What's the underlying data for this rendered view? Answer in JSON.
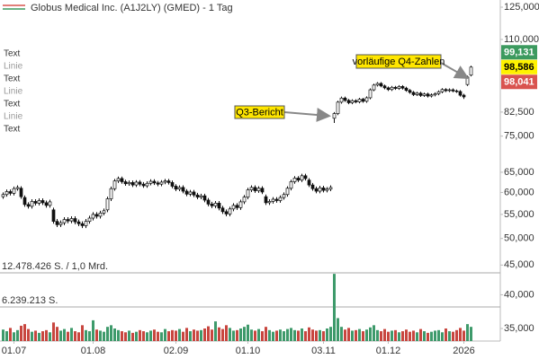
{
  "chart_data": {
    "type": "candlestick",
    "title": "Globus Medical Inc. (A1J2LY) (GMED) - 1 Tag",
    "categories": [
      null,
      null,
      null,
      "01.07",
      null,
      null,
      null,
      null,
      null,
      null,
      null,
      null,
      null,
      null,
      null,
      null,
      null,
      null,
      null,
      null,
      null,
      null,
      null,
      null,
      null,
      "01.08",
      null,
      null,
      null,
      null,
      null,
      null,
      null,
      null,
      null,
      null,
      null,
      null,
      null,
      null,
      null,
      null,
      null,
      null,
      null,
      null,
      null,
      null,
      "02.09",
      null,
      null,
      null,
      null,
      null,
      null,
      null,
      null,
      null,
      null,
      null,
      null,
      null,
      null,
      null,
      null,
      null,
      null,
      null,
      "01.10",
      null,
      null,
      null,
      null,
      null,
      null,
      null,
      null,
      null,
      null,
      null,
      null,
      null,
      null,
      null,
      null,
      null,
      null,
      null,
      null,
      "03.11",
      null,
      null,
      null,
      null,
      null,
      null,
      null,
      null,
      null,
      null,
      null,
      null,
      null,
      null,
      null,
      null,
      null,
      "01.12",
      null,
      null,
      null,
      null,
      null,
      null,
      null,
      null,
      null,
      null,
      null,
      null,
      null,
      null,
      null,
      null,
      null,
      null,
      null,
      null,
      "2026",
      null,
      null
    ],
    "open": [
      59.0,
      59.5,
      60.2,
      59.8,
      60.9,
      61.0,
      58.8,
      57.2,
      56.8,
      57.9,
      57.5,
      58.1,
      57.6,
      57.0,
      56.0,
      53.5,
      52.8,
      53.2,
      53.9,
      53.6,
      54.1,
      53.4,
      53.0,
      52.6,
      53.5,
      54.2,
      55.0,
      54.6,
      55.3,
      56.0,
      58.5,
      60.9,
      62.8,
      63.4,
      62.6,
      62.1,
      62.4,
      61.8,
      62.5,
      62.0,
      61.6,
      62.2,
      62.7,
      62.3,
      62.0,
      62.5,
      62.8,
      62.4,
      61.5,
      60.8,
      61.2,
      60.3,
      59.6,
      60.1,
      59.4,
      58.9,
      59.2,
      58.2,
      57.3,
      56.9,
      57.5,
      56.4,
      55.6,
      55.1,
      56.2,
      57.0,
      56.5,
      57.8,
      58.9,
      60.6,
      61.2,
      60.4,
      61.0,
      59.0,
      57.6,
      57.9,
      58.4,
      58.1,
      58.8,
      59.5,
      61.0,
      62.6,
      63.5,
      63.0,
      64.1,
      63.0,
      61.8,
      60.9,
      60.3,
      61.1,
      60.5,
      60.8,
      80.5,
      82.0,
      85.8,
      87.2,
      86.4,
      85.6,
      86.3,
      85.9,
      86.8,
      86.1,
      87.3,
      90.1,
      91.8,
      92.4,
      91.5,
      90.8,
      90.2,
      91.0,
      90.6,
      91.3,
      90.7,
      89.9,
      89.2,
      88.4,
      88.9,
      88.1,
      88.6,
      87.9,
      88.3,
      88.7,
      89.4,
      90.2,
      89.8,
      90.1,
      89.7,
      89.5,
      88.2,
      92.0,
      95.5
    ],
    "high": [
      60.0,
      60.7,
      60.7,
      61.4,
      61.7,
      61.5,
      59.3,
      57.7,
      58.4,
      58.4,
      58.6,
      58.6,
      58.1,
      58.3,
      56.5,
      54.0,
      53.7,
      54.4,
      54.4,
      54.6,
      54.6,
      53.9,
      53.5,
      54.0,
      54.7,
      55.5,
      55.5,
      55.8,
      56.3,
      59.0,
      61.4,
      63.3,
      63.9,
      63.9,
      63.1,
      62.9,
      62.9,
      63.0,
      63.0,
      62.5,
      62.7,
      63.2,
      63.2,
      62.8,
      63.0,
      63.3,
      63.3,
      62.9,
      62.0,
      61.7,
      61.7,
      60.8,
      60.6,
      60.6,
      59.9,
      59.7,
      59.7,
      58.7,
      57.8,
      58.0,
      58.0,
      56.9,
      56.1,
      56.7,
      57.5,
      57.5,
      58.3,
      59.4,
      61.1,
      61.7,
      61.7,
      61.5,
      61.5,
      59.5,
      58.4,
      58.9,
      58.9,
      59.3,
      60.0,
      61.5,
      63.1,
      64.0,
      64.0,
      64.6,
      64.6,
      63.5,
      62.3,
      61.4,
      61.6,
      61.6,
      61.3,
      61.7,
      82.5,
      86.3,
      87.7,
      87.7,
      86.9,
      86.8,
      86.8,
      87.3,
      87.3,
      87.8,
      90.6,
      92.3,
      92.9,
      92.9,
      92.0,
      91.3,
      91.5,
      91.5,
      91.8,
      91.8,
      91.2,
      90.4,
      89.7,
      89.4,
      89.4,
      89.1,
      89.1,
      88.8,
      89.2,
      89.9,
      90.7,
      90.7,
      90.6,
      90.6,
      90.2,
      90.0,
      88.7,
      95.3,
      99.131
    ],
    "low": [
      58.5,
      59.0,
      59.3,
      59.3,
      60.4,
      58.5,
      56.7,
      56.3,
      56.3,
      57.0,
      57.0,
      57.1,
      56.5,
      56.5,
      53.0,
      52.3,
      52.3,
      52.7,
      53.1,
      53.1,
      52.9,
      52.5,
      52.1,
      52.1,
      53.0,
      53.7,
      54.1,
      54.1,
      54.8,
      55.5,
      58.0,
      60.4,
      62.3,
      62.1,
      61.6,
      61.6,
      61.3,
      61.3,
      61.5,
      61.1,
      61.1,
      61.7,
      61.8,
      61.5,
      61.5,
      62.0,
      61.9,
      61.0,
      60.3,
      60.3,
      59.8,
      59.1,
      59.1,
      58.9,
      58.4,
      58.4,
      57.7,
      56.8,
      56.4,
      56.4,
      55.9,
      55.1,
      54.6,
      54.6,
      55.7,
      56.0,
      56.0,
      57.3,
      58.4,
      60.1,
      59.9,
      59.9,
      59.6,
      57.1,
      57.1,
      57.4,
      57.6,
      57.6,
      58.3,
      59.0,
      60.5,
      62.1,
      62.5,
      62.5,
      62.9,
      61.3,
      60.4,
      59.8,
      59.8,
      60.0,
      60.0,
      60.3,
      79.0,
      81.5,
      85.3,
      85.9,
      85.1,
      85.1,
      85.4,
      85.4,
      85.6,
      85.6,
      86.8,
      89.6,
      91.3,
      91.0,
      90.3,
      89.7,
      89.7,
      90.1,
      90.1,
      90.2,
      89.4,
      88.7,
      87.9,
      87.9,
      87.6,
      87.6,
      87.4,
      87.4,
      87.8,
      88.2,
      88.9,
      89.3,
      89.3,
      89.2,
      89.0,
      87.7,
      86.9,
      91.5,
      95.0
    ],
    "close": [
      59.5,
      60.2,
      59.8,
      60.9,
      61.2,
      59.0,
      57.2,
      56.8,
      57.9,
      57.5,
      58.1,
      57.6,
      57.0,
      57.8,
      53.5,
      52.8,
      53.2,
      53.9,
      53.6,
      54.1,
      53.4,
      53.0,
      52.6,
      53.5,
      54.2,
      55.0,
      54.6,
      55.3,
      55.8,
      58.5,
      60.9,
      62.8,
      63.4,
      62.6,
      62.1,
      62.4,
      61.8,
      62.5,
      62.0,
      61.6,
      62.2,
      62.7,
      62.3,
      62.0,
      62.5,
      62.8,
      62.4,
      61.5,
      60.8,
      61.2,
      60.3,
      59.6,
      60.1,
      59.4,
      58.9,
      59.2,
      58.2,
      57.3,
      56.9,
      57.5,
      56.4,
      55.6,
      55.1,
      56.2,
      57.0,
      56.5,
      57.8,
      58.9,
      60.6,
      61.2,
      60.4,
      61.0,
      60.1,
      57.6,
      57.9,
      58.4,
      58.1,
      58.8,
      59.5,
      61.0,
      62.6,
      63.5,
      63.0,
      64.1,
      63.4,
      61.8,
      60.9,
      60.3,
      61.1,
      60.5,
      60.8,
      61.2,
      82.0,
      85.8,
      87.2,
      86.4,
      85.6,
      86.3,
      85.9,
      86.8,
      86.1,
      87.3,
      90.1,
      91.8,
      92.4,
      91.5,
      90.8,
      90.2,
      91.0,
      90.6,
      91.3,
      90.7,
      89.9,
      89.2,
      88.4,
      88.9,
      88.1,
      88.6,
      87.9,
      88.3,
      88.7,
      89.4,
      90.2,
      89.8,
      90.1,
      89.7,
      89.5,
      88.2,
      87.6,
      94.8,
      98.586
    ],
    "volume": [
      2100000,
      1800000,
      2400000,
      1600000,
      2000000,
      2800000,
      3100000,
      2200000,
      1700000,
      1900000,
      1500000,
      1800000,
      2000000,
      1600000,
      3400000,
      2600000,
      1900000,
      2200000,
      1700000,
      2400000,
      1800000,
      1600000,
      2900000,
      2000000,
      1800000,
      3800000,
      2100000,
      1900000,
      1700000,
      2600000,
      2900000,
      2300000,
      2000000,
      1800000,
      1600000,
      1900000,
      1500000,
      1700000,
      2000000,
      1800000,
      1600000,
      1900000,
      2100000,
      1700000,
      1600000,
      2200000,
      1800000,
      2000000,
      1900000,
      2200000,
      1700000,
      2400000,
      1800000,
      2100000,
      1900000,
      2000000,
      2300000,
      2700000,
      2100000,
      3600000,
      2500000,
      2200000,
      2900000,
      2400000,
      1900000,
      2000000,
      2300000,
      2600000,
      3000000,
      2100000,
      1900000,
      2200000,
      1800000,
      2600000,
      2000000,
      1700000,
      1900000,
      2100000,
      1800000,
      2200000,
      2400000,
      2000000,
      1900000,
      2300000,
      1800000,
      2500000,
      2100000,
      1900000,
      2000000,
      1800000,
      2300000,
      2600000,
      12300000,
      4200000,
      2600000,
      2100000,
      2400000,
      1900000,
      2000000,
      2200000,
      1800000,
      2100000,
      2500000,
      2900000,
      2000000,
      1800000,
      2200000,
      1700000,
      1900000,
      2000000,
      1600000,
      1800000,
      2100000,
      1700000,
      1900000,
      1600000,
      2200000,
      1800000,
      1500000,
      1700000,
      1900000,
      2000000,
      1600000,
      2300000,
      1800000,
      1700000,
      2000000,
      2400000,
      1900000,
      3100000,
      2600000
    ],
    "up_color": "#ffffff",
    "down_color": "#111111",
    "volume_up_color": "#3e9a6b",
    "volume_down_color": "#c8463f",
    "log_scale": true,
    "ylim": [
      35,
      125
    ],
    "yticks": [
      {
        "value": 125,
        "label": "125,000"
      },
      {
        "value": 110,
        "label": "110,000"
      },
      {
        "value": 82.5,
        "label": "82,500"
      },
      {
        "value": 75,
        "label": "75,000"
      },
      {
        "value": 65,
        "label": "65,000"
      },
      {
        "value": 60,
        "label": "60,000"
      },
      {
        "value": 55,
        "label": "55,000"
      },
      {
        "value": 50,
        "label": "50,000"
      },
      {
        "value": 45,
        "label": "45,000"
      },
      {
        "value": 40,
        "label": "40,000"
      },
      {
        "value": 35,
        "label": "35,000"
      }
    ],
    "volume_lim": [
      0,
      15000000
    ],
    "volume_levels": [
      {
        "value": 12478426,
        "label": "12.478.426 S. / 1,0 Mrd."
      },
      {
        "value": 6239213,
        "label": "6.239.213 S."
      }
    ],
    "price_badges": [
      {
        "value": 99.131,
        "label": "99,131",
        "color": "#3c9a5f"
      },
      {
        "value": 98.586,
        "label": "98,586",
        "color": "#fff200"
      },
      {
        "value": 98.041,
        "label": "98,041",
        "color": "#d9534f"
      }
    ],
    "annotations": [
      "Q3-Bericht",
      "vorläufige Q4-Zahlen"
    ],
    "side_labels": [
      "Text",
      "Linie",
      "Text",
      "Linie",
      "Text",
      "Linie",
      "Text"
    ]
  }
}
